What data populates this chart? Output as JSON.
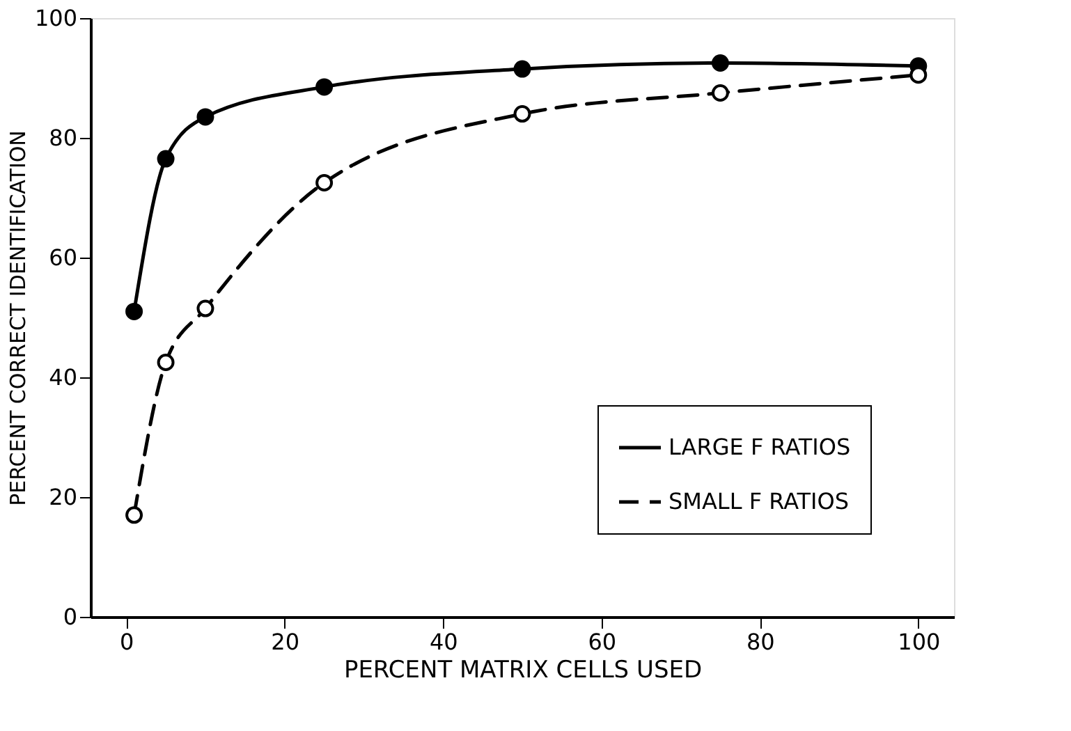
{
  "chart_data": {
    "type": "line",
    "xlabel": "PERCENT MATRIX CELLS USED",
    "ylabel": "PERCENT CORRECT IDENTIFICATION",
    "xlim": [
      -4.5,
      104.5
    ],
    "ylim": [
      0,
      100
    ],
    "xticks": [
      0,
      20,
      40,
      60,
      80,
      100
    ],
    "yticks": [
      0,
      20,
      40,
      60,
      80,
      100
    ],
    "grid": false,
    "legend": "bottom right",
    "marker": "circle",
    "series": [
      {
        "name": "LARGE F RATIOS",
        "color": "#000000",
        "line_style": "solid",
        "x": [
          1,
          5,
          10,
          25,
          50,
          75,
          100
        ],
        "values": [
          51,
          76.5,
          83.5,
          88.5,
          91.5,
          92.5,
          92
        ]
      },
      {
        "name": "SMALL F RATIOS",
        "color": "#000000",
        "line_style": "dashed",
        "x": [
          1,
          5,
          10,
          25,
          50,
          75,
          100
        ],
        "values": [
          17,
          42.5,
          51.5,
          72.5,
          84,
          87.5,
          90.5
        ]
      }
    ]
  }
}
